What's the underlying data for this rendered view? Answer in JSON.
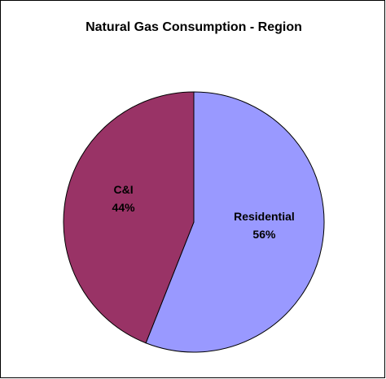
{
  "chart_data": {
    "type": "pie",
    "title": "Natural Gas Consumption - Region",
    "categories": [
      "Residential",
      "C&I"
    ],
    "values": [
      56,
      44
    ],
    "value_labels": [
      "56%",
      "44%"
    ],
    "colors": [
      "#9999ff",
      "#993366"
    ]
  }
}
